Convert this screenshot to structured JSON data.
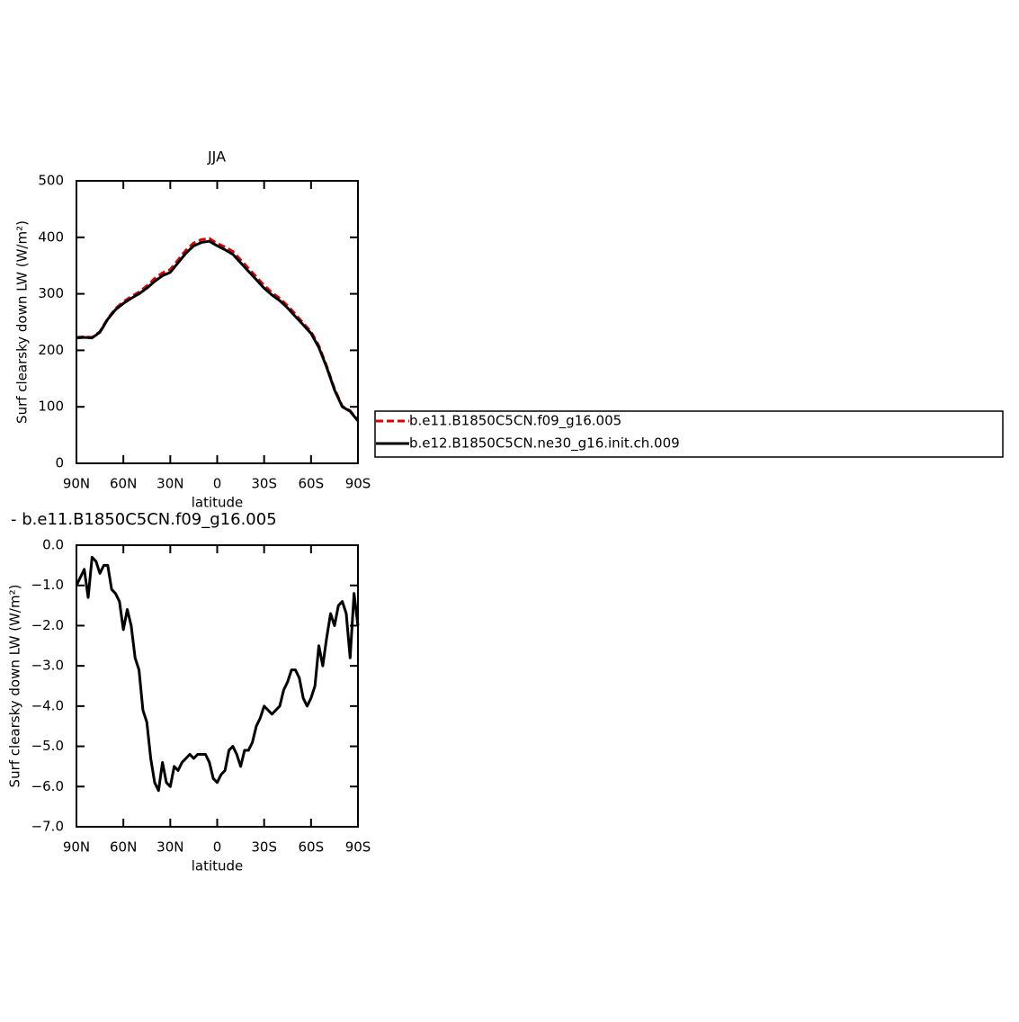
{
  "chart_data": [
    {
      "type": "line",
      "title": "JJA",
      "xlabel": "latitude",
      "ylabel": "Surf clearsky down LW (W/m²)",
      "x": [
        90,
        85,
        80,
        75,
        70,
        65,
        60,
        55,
        50,
        45,
        40,
        35,
        30,
        25,
        20,
        15,
        10,
        5,
        0,
        -5,
        -10,
        -15,
        -20,
        -25,
        -30,
        -35,
        -40,
        -45,
        -50,
        -55,
        -60,
        -65,
        -70,
        -75,
        -80,
        -85,
        -90
      ],
      "series": [
        {
          "name": "b.e11.B1850C5CN.f09_g16.005",
          "color": "#e00000",
          "dash": true,
          "values": [
            223,
            224,
            223,
            233,
            256,
            274,
            286,
            295,
            303,
            314,
            327,
            337,
            343,
            360,
            377,
            390,
            396,
            398,
            389,
            383,
            375,
            360,
            345,
            330,
            315,
            302,
            292,
            279,
            264,
            248,
            233,
            208,
            172,
            132,
            101,
            93,
            76
          ]
        },
        {
          "name": "b.e12.B1850C5CN.ne30_g16.init.ch.009",
          "color": "#000000",
          "dash": false,
          "values": [
            222,
            223,
            222,
            232,
            255,
            272,
            283,
            292,
            300,
            310,
            322,
            332,
            338,
            355,
            372,
            385,
            391,
            393,
            385,
            378,
            370,
            355,
            340,
            325,
            310,
            298,
            288,
            275,
            260,
            245,
            230,
            205,
            170,
            130,
            100,
            92,
            75
          ]
        }
      ],
      "xlim": [
        90,
        -90
      ],
      "xticks": [
        {
          "value": 90,
          "label": "90N"
        },
        {
          "value": 60,
          "label": "60N"
        },
        {
          "value": 30,
          "label": "30N"
        },
        0,
        {
          "value": -30,
          "label": "30S"
        },
        {
          "value": -60,
          "label": "60S"
        },
        {
          "value": -90,
          "label": "90S"
        }
      ],
      "ylim": [
        0,
        500
      ],
      "yticks": [
        0,
        100,
        200,
        300,
        400,
        500
      ],
      "legend": "outside-right"
    },
    {
      "type": "line",
      "title": "- b.e11.B1850C5CN.f09_g16.005",
      "xlabel": "latitude",
      "ylabel": "Surf clearsky down LW (W/m²)",
      "x": [
        90,
        87.5,
        85,
        82.5,
        80,
        77.5,
        75,
        72.5,
        70,
        67.5,
        65,
        62.5,
        60,
        57.5,
        55,
        52.5,
        50,
        47.5,
        45,
        42.5,
        40,
        37.5,
        35,
        32.5,
        30,
        27.5,
        25,
        22.5,
        20,
        17.5,
        15,
        12.5,
        10,
        7.5,
        5,
        2.5,
        0,
        -2.5,
        -5,
        -7.5,
        -10,
        -12.5,
        -15,
        -17.5,
        -20,
        -22.5,
        -25,
        -27.5,
        -30,
        -32.5,
        -35,
        -37.5,
        -40,
        -42.5,
        -45,
        -47.5,
        -50,
        -52.5,
        -55,
        -57.5,
        -60,
        -62.5,
        -65,
        -67.5,
        -70,
        -72.5,
        -75,
        -77.5,
        -80,
        -82.5,
        -85,
        -87.5,
        -90
      ],
      "series": [
        {
          "color": "#000000",
          "values": [
            -1.0,
            -0.8,
            -0.6,
            -1.3,
            -0.3,
            -0.4,
            -0.7,
            -0.5,
            -0.5,
            -1.1,
            -1.2,
            -1.4,
            -2.1,
            -1.6,
            -2.0,
            -2.8,
            -3.1,
            -4.1,
            -4.4,
            -5.3,
            -5.9,
            -6.1,
            -5.4,
            -5.9,
            -6.0,
            -5.5,
            -5.6,
            -5.4,
            -5.3,
            -5.2,
            -5.3,
            -5.2,
            -5.2,
            -5.2,
            -5.4,
            -5.8,
            -5.9,
            -5.7,
            -5.6,
            -5.1,
            -5.0,
            -5.2,
            -5.5,
            -5.1,
            -5.1,
            -4.9,
            -4.5,
            -4.3,
            -4.0,
            -4.1,
            -4.2,
            -4.1,
            -4.0,
            -3.6,
            -3.4,
            -3.1,
            -3.1,
            -3.3,
            -3.8,
            -4.0,
            -3.8,
            -3.5,
            -2.5,
            -3.0,
            -2.3,
            -1.7,
            -2.0,
            -1.5,
            -1.4,
            -1.7,
            -2.8,
            -1.2,
            -2.0
          ]
        }
      ],
      "xlim": [
        90,
        -90
      ],
      "xticks": [
        {
          "value": 90,
          "label": "90N"
        },
        {
          "value": 60,
          "label": "60N"
        },
        {
          "value": 30,
          "label": "30N"
        },
        0,
        {
          "value": -30,
          "label": "30S"
        },
        {
          "value": -60,
          "label": "60S"
        },
        {
          "value": -90,
          "label": "90S"
        }
      ],
      "ylim": [
        -7,
        0
      ],
      "yticks": [
        {
          "value": 0,
          "label": "0.0"
        },
        {
          "value": -1,
          "label": "−1.0"
        },
        {
          "value": -2,
          "label": "−2.0"
        },
        {
          "value": -3,
          "label": "−3.0"
        },
        {
          "value": -4,
          "label": "−4.0"
        },
        {
          "value": -5,
          "label": "−5.0"
        },
        {
          "value": -6,
          "label": "−6.0"
        },
        {
          "value": -7,
          "label": "−7.0"
        }
      ]
    }
  ]
}
